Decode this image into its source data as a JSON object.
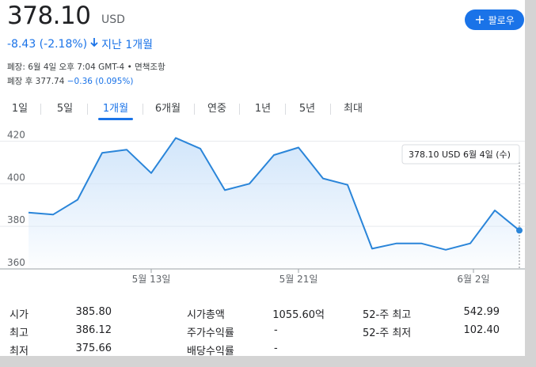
{
  "header": {
    "price": "378.10",
    "currency": "USD",
    "follow_label": "팔로우",
    "change": "-8.43 (-2.18%)",
    "period": "지난 1개월",
    "close_info": "폐장: 6월 4일 오후 7:04 GMT-4 • 면책조항",
    "after_hours_label": "폐장 후 377.74",
    "after_hours_change": "−0.36 (0.095%)"
  },
  "colors": {
    "accent": "#1a73e8",
    "negative": "#1a73e8",
    "line": "#2a85d9",
    "fill": "#cfe4fa"
  },
  "icons": {
    "follow": "plus-icon",
    "change": "down-arrow-icon"
  },
  "tabs": [
    {
      "label": "1일",
      "active": false
    },
    {
      "label": "5일",
      "active": false
    },
    {
      "label": "1개월",
      "active": true
    },
    {
      "label": "6개월",
      "active": false
    },
    {
      "label": "연중",
      "active": false
    },
    {
      "label": "1년",
      "active": false
    },
    {
      "label": "5년",
      "active": false
    },
    {
      "label": "최대",
      "active": false
    }
  ],
  "chart_data": {
    "type": "area",
    "x": [
      "5월 6일",
      "5월 7일",
      "5월 8일",
      "5월 9일",
      "5월 10일",
      "5월 13일",
      "5월 14일",
      "5월 15일",
      "5월 16일",
      "5월 17일",
      "5월 20일",
      "5월 21일",
      "5월 22일",
      "5월 23일",
      "5월 24일",
      "5월 28일",
      "5월 29일",
      "5월 30일",
      "5월 31일",
      "6월 3일",
      "6월 4일"
    ],
    "values": [
      386.5,
      385.5,
      392.5,
      414.5,
      416.0,
      405.0,
      421.5,
      416.5,
      397.0,
      400.0,
      413.5,
      417.0,
      402.5,
      399.5,
      369.5,
      372.0,
      372.0,
      369.0,
      372.0,
      387.5,
      378.1
    ],
    "ylim": [
      360,
      425
    ],
    "yticks": [
      360,
      380,
      400,
      420
    ],
    "xtick_labels": [
      "5월 13일",
      "5월 21일",
      "6월 2일"
    ],
    "tooltip": {
      "value": "378.10 USD",
      "date": "6월 4일 (수)"
    },
    "grid": true
  },
  "stats": [
    {
      "label": "시가",
      "value": "385.80"
    },
    {
      "label": "최고",
      "value": "386.12"
    },
    {
      "label": "최저",
      "value": "375.66"
    },
    {
      "label": "시가총액",
      "value": "1055.60억"
    },
    {
      "label": "주가수익률",
      "value": "-"
    },
    {
      "label": "배당수익률",
      "value": "-"
    },
    {
      "label": "52-주 최고",
      "value": "542.99"
    },
    {
      "label": "52-주 최저",
      "value": "102.40"
    }
  ]
}
